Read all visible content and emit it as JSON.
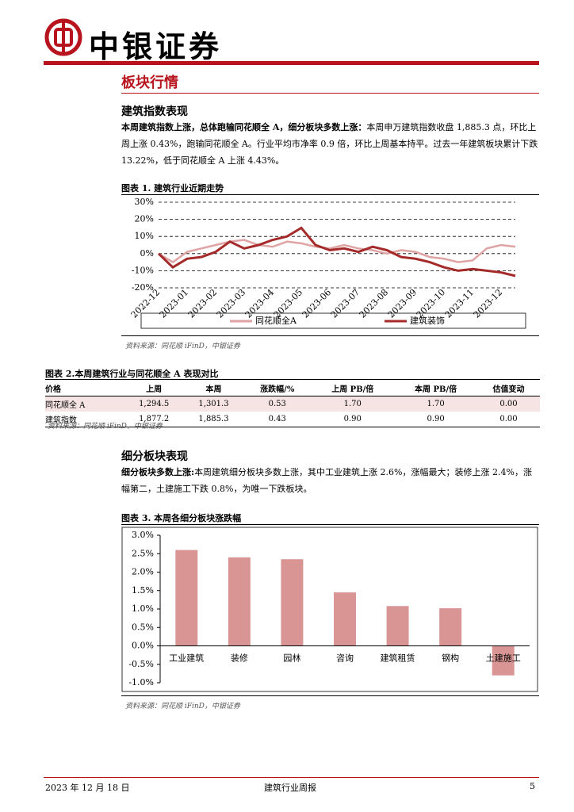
{
  "header": {
    "brand": "中银证券"
  },
  "section_title": "板块行情",
  "subsection1": {
    "title": "建筑指数表现",
    "lead": "本周建筑指数上涨，总体跑输同花顺全 A，细分板块多数上涨：",
    "body": "本周申万建筑指数收盘 1,885.3 点，环比上周上涨 0.43%，跑输同花顺全 A。行业平均市净率 0.9 倍，环比上周基本持平。过去一年建筑板块累计下跌 13.22%，低于同花顺全 A 上涨 4.43%。"
  },
  "figure1": {
    "caption": "图表 1. 建筑行业近期走势",
    "source": "资料来源：同花顺 iFinD，中银证券",
    "chart_data": {
      "type": "line",
      "categories": [
        "2022-12",
        null,
        "2023-01",
        null,
        "2023-02",
        null,
        "2023-03",
        null,
        "2023-04",
        null,
        "2023-05",
        null,
        "2023-06",
        null,
        "2023-07",
        null,
        "2023-08",
        null,
        "2023-09",
        null,
        "2023-10",
        null,
        "2023-11",
        null,
        "2023-12",
        null
      ],
      "series": [
        {
          "name": "同花顺全A",
          "color": "#e0a3a3",
          "values": [
            0,
            -5,
            1,
            3,
            5,
            7,
            8,
            5,
            4,
            7,
            6,
            4,
            3,
            5,
            3,
            2,
            0,
            2,
            1,
            -2,
            -3,
            -5,
            -4,
            3,
            5,
            4
          ]
        },
        {
          "name": "建筑装饰",
          "color": "#a52a2a",
          "values": [
            0,
            -8,
            -3,
            -2,
            1,
            7,
            3,
            5,
            8,
            10,
            15,
            5,
            2,
            3,
            1,
            4,
            2,
            -2,
            -3,
            -5,
            -8,
            -10,
            -9,
            -10,
            -11,
            -13
          ]
        }
      ],
      "ylim": [
        -20,
        30
      ],
      "yticks": [
        {
          "value": -20,
          "label": "-20%"
        },
        {
          "value": -10,
          "label": "-10%"
        },
        {
          "value": 0,
          "label": "0%"
        },
        {
          "value": 10,
          "label": "10%"
        },
        {
          "value": 20,
          "label": "20%"
        },
        {
          "value": 30,
          "label": "30%"
        }
      ],
      "grid": true
    }
  },
  "figure2": {
    "caption": "图表 2.本周建筑行业与同花顺全 A 表现对比",
    "source": "资料来源：同花顺 iFinD，中银证券",
    "table": {
      "columns": [
        "价格",
        "上周",
        "本周",
        "涨跌幅/%",
        "上周 PB/倍",
        "本周 PB/倍",
        "估值变动"
      ],
      "rows": [
        [
          "同花顺全 A",
          "1,294.5",
          "1,301.3",
          "0.53",
          "1.70",
          "1.70",
          "0.00"
        ],
        [
          "建筑指数",
          "1,877.2",
          "1,885.3",
          "0.43",
          "0.90",
          "0.90",
          "0.00"
        ]
      ]
    }
  },
  "subsection2": {
    "title": "细分板块表现",
    "lead": "细分板块多数上涨:",
    "body": "本周建筑细分板块多数上涨，其中工业建筑上涨 2.6%，涨幅最大；装修上涨 2.4%，涨幅第二，土建施工下跌 0.8%，为唯一下跌板块。"
  },
  "figure3": {
    "caption": "图表 3. 本周各细分板块涨跌幅",
    "source": "资料来源：同花顺 iFinD，中银证券",
    "chart_data": {
      "type": "bar",
      "categories": [
        "工业建筑",
        "装修",
        "园林",
        "咨询",
        "建筑租赁",
        "钢构",
        "土建施工"
      ],
      "values": [
        2.6,
        2.4,
        2.35,
        1.45,
        1.08,
        1.02,
        -0.8
      ],
      "color": "#d99594",
      "ylim": [
        -1,
        3
      ],
      "yticks": [
        {
          "value": -1,
          "label": "-1.0%"
        },
        {
          "value": -0.5,
          "label": "-0.5%"
        },
        {
          "value": 0,
          "label": "0.0%"
        },
        {
          "value": 0.5,
          "label": "0.5%"
        },
        {
          "value": 1,
          "label": "1.0%"
        },
        {
          "value": 1.5,
          "label": "1.5%"
        },
        {
          "value": 2,
          "label": "2.0%"
        },
        {
          "value": 2.5,
          "label": "2.5%"
        },
        {
          "value": 3,
          "label": "3.0%"
        }
      ]
    }
  },
  "footer": {
    "date": "2023 年 12 月 18 日",
    "report": "建筑行业周报",
    "page": "5"
  }
}
